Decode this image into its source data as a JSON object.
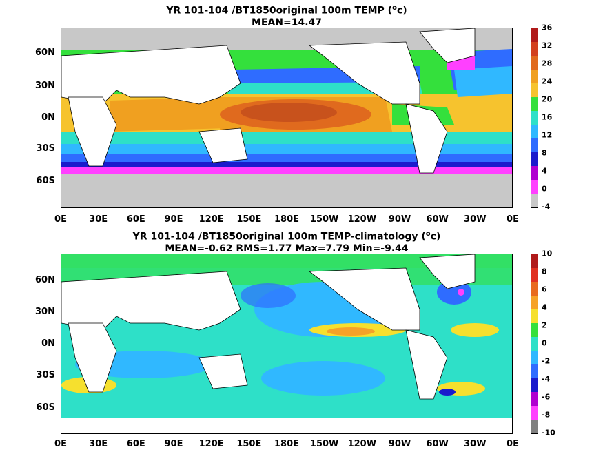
{
  "chart_data": [
    {
      "type": "heatmap",
      "title_line1_pre": "YR 101-104 /BT1850original 100m TEMP (",
      "title_unit": "o",
      "title_line1_post": "c)",
      "title_line2": "MEAN=14.47",
      "x_ticks": [
        "0E",
        "30E",
        "60E",
        "90E",
        "120E",
        "150E",
        "180E",
        "150W",
        "120W",
        "90W",
        "60W",
        "30W",
        "0E"
      ],
      "y_ticks": [
        "60N",
        "30N",
        "0N",
        "30S",
        "60S"
      ],
      "colorbar_ticks": [
        "36",
        "32",
        "28",
        "24",
        "20",
        "16",
        "12",
        "8",
        "4",
        "0",
        "-4"
      ],
      "colorbar_colors": [
        "#b01a1a",
        "#d2401e",
        "#e06a1e",
        "#f0a020",
        "#f6c32e",
        "#34e03c",
        "#2ee0c8",
        "#30b8ff",
        "#2f6cff",
        "#1a1acc",
        "#b000d0",
        "#ff40ff",
        "#c8c8c8"
      ],
      "mean": 14.47
    },
    {
      "type": "heatmap",
      "title_line1_pre": "YR 101-104 /BT1850original 100m TEMP-climatology (",
      "title_unit": "o",
      "title_line1_post": "c)",
      "title_line2": "MEAN=-0.62   RMS=1.77   Max=7.79   Min=-9.44",
      "x_ticks": [
        "0E",
        "30E",
        "60E",
        "90E",
        "120E",
        "150E",
        "180E",
        "150W",
        "120W",
        "90W",
        "60W",
        "30W",
        "0E"
      ],
      "y_ticks": [
        "60N",
        "30N",
        "0N",
        "30S",
        "60S"
      ],
      "colorbar_ticks": [
        "10",
        "8",
        "6",
        "4",
        "2",
        "0",
        "-2",
        "-4",
        "-6",
        "-8",
        "-10"
      ],
      "colorbar_colors": [
        "#b01a1a",
        "#e03020",
        "#e86a1e",
        "#f6a228",
        "#f6e02e",
        "#34e03c",
        "#2ee0c8",
        "#30b8ff",
        "#2f6cff",
        "#1a1acc",
        "#b000d0",
        "#ff40ff",
        "#808080"
      ],
      "mean": -0.62,
      "rms": 1.77,
      "max": 7.79,
      "min": -9.44
    }
  ]
}
